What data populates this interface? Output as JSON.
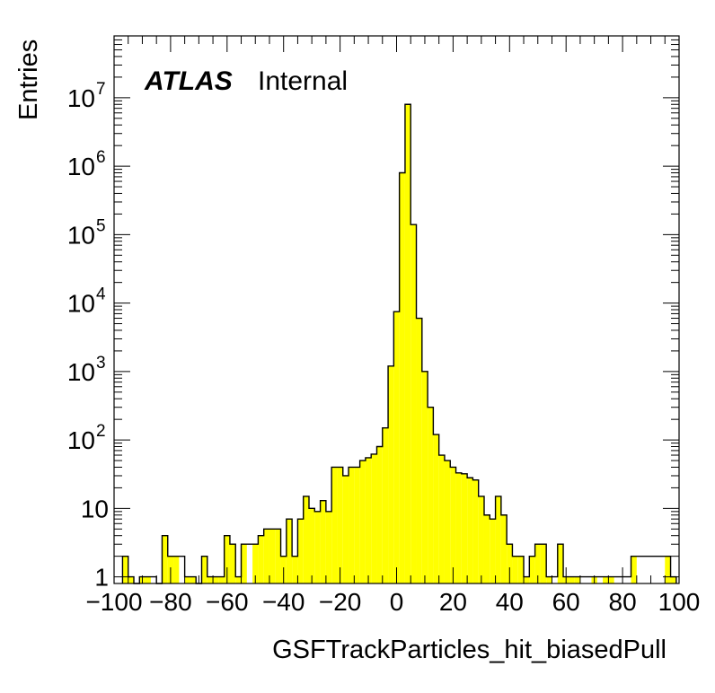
{
  "chart_data": {
    "type": "bar",
    "style": "histogram",
    "xlabel": "GSFTrackParticles_hit_biasedPull",
    "ylabel": "Entries",
    "xlim": [
      -100,
      100
    ],
    "ylim": [
      0.8,
      80000000
    ],
    "y_scale": "log",
    "bin_width": 2,
    "fill_color": "#ffff00",
    "line_color": "#000000",
    "label": {
      "experiment": "ATLAS",
      "status": "Internal"
    },
    "x_ticks": [
      -100,
      -80,
      -60,
      -40,
      -20,
      0,
      20,
      40,
      60,
      80,
      100
    ],
    "x_tick_labels": [
      "−100",
      "−80",
      "−60",
      "−40",
      "−20",
      "0",
      "20",
      "40",
      "60",
      "80",
      "100"
    ],
    "y_ticks": [
      1,
      10,
      100,
      1000,
      10000,
      100000,
      1000000,
      10000000
    ],
    "y_tick_labels": [
      {
        "base": "1",
        "exp": ""
      },
      {
        "base": "10",
        "exp": ""
      },
      {
        "base": "10",
        "exp": "2"
      },
      {
        "base": "10",
        "exp": "3"
      },
      {
        "base": "10",
        "exp": "4"
      },
      {
        "base": "10",
        "exp": "5"
      },
      {
        "base": "10",
        "exp": "6"
      },
      {
        "base": "10",
        "exp": "7"
      }
    ],
    "bins": [
      {
        "x": -96,
        "y": 2
      },
      {
        "x": -94,
        "y": 1
      },
      {
        "x": -92,
        "y": 0
      },
      {
        "x": -90,
        "y": 1
      },
      {
        "x": -88,
        "y": 1
      },
      {
        "x": -84,
        "y": 0
      },
      {
        "x": -82,
        "y": 4
      },
      {
        "x": -80,
        "y": 2
      },
      {
        "x": -78,
        "y": 2
      },
      {
        "x": -74,
        "y": 1
      },
      {
        "x": -72,
        "y": 1
      },
      {
        "x": -70,
        "y": 0
      },
      {
        "x": -68,
        "y": 2
      },
      {
        "x": -66,
        "y": 1
      },
      {
        "x": -64,
        "y": 1
      },
      {
        "x": -62,
        "y": 1
      },
      {
        "x": -60,
        "y": 4
      },
      {
        "x": -58,
        "y": 3
      },
      {
        "x": -56,
        "y": 1
      },
      {
        "x": -54,
        "y": 3
      },
      {
        "x": -50,
        "y": 3
      },
      {
        "x": -48,
        "y": 4
      },
      {
        "x": -46,
        "y": 5
      },
      {
        "x": -44,
        "y": 5
      },
      {
        "x": -42,
        "y": 5
      },
      {
        "x": -40,
        "y": 2
      },
      {
        "x": -38,
        "y": 7
      },
      {
        "x": -36,
        "y": 2
      },
      {
        "x": -34,
        "y": 7
      },
      {
        "x": -32,
        "y": 15
      },
      {
        "x": -30,
        "y": 10
      },
      {
        "x": -28,
        "y": 9
      },
      {
        "x": -26,
        "y": 13
      },
      {
        "x": -24,
        "y": 9
      },
      {
        "x": -22,
        "y": 40
      },
      {
        "x": -20,
        "y": 40
      },
      {
        "x": -18,
        "y": 30
      },
      {
        "x": -16,
        "y": 40
      },
      {
        "x": -14,
        "y": 40
      },
      {
        "x": -12,
        "y": 50
      },
      {
        "x": -10,
        "y": 55
      },
      {
        "x": -8,
        "y": 62
      },
      {
        "x": -6,
        "y": 80
      },
      {
        "x": -4,
        "y": 150
      },
      {
        "x": -2,
        "y": 1200
      },
      {
        "x": 0,
        "y": 7500
      },
      {
        "x": 2,
        "y": 800000
      },
      {
        "x": 4,
        "y": 8000000
      },
      {
        "x": 6,
        "y": 140000
      },
      {
        "x": 8,
        "y": 6000
      },
      {
        "x": 10,
        "y": 1000
      },
      {
        "x": 12,
        "y": 300
      },
      {
        "x": 14,
        "y": 120
      },
      {
        "x": 16,
        "y": 60
      },
      {
        "x": 18,
        "y": 50
      },
      {
        "x": 20,
        "y": 40
      },
      {
        "x": 22,
        "y": 33
      },
      {
        "x": 24,
        "y": 32
      },
      {
        "x": 26,
        "y": 28
      },
      {
        "x": 28,
        "y": 26
      },
      {
        "x": 30,
        "y": 15
      },
      {
        "x": 32,
        "y": 8
      },
      {
        "x": 34,
        "y": 7
      },
      {
        "x": 36,
        "y": 15
      },
      {
        "x": 38,
        "y": 8
      },
      {
        "x": 40,
        "y": 3
      },
      {
        "x": 42,
        "y": 2
      },
      {
        "x": 44,
        "y": 2
      },
      {
        "x": 46,
        "y": 1
      },
      {
        "x": 48,
        "y": 2
      },
      {
        "x": 50,
        "y": 3
      },
      {
        "x": 52,
        "y": 3
      },
      {
        "x": 54,
        "y": 1
      },
      {
        "x": 58,
        "y": 3
      },
      {
        "x": 60,
        "y": 1
      },
      {
        "x": 62,
        "y": 1
      },
      {
        "x": 64,
        "y": 1
      },
      {
        "x": 70,
        "y": 1
      },
      {
        "x": 74,
        "y": 1
      },
      {
        "x": 76,
        "y": 1
      },
      {
        "x": 84,
        "y": 2
      },
      {
        "x": 96,
        "y": 2
      },
      {
        "x": 98,
        "y": 1
      }
    ]
  }
}
